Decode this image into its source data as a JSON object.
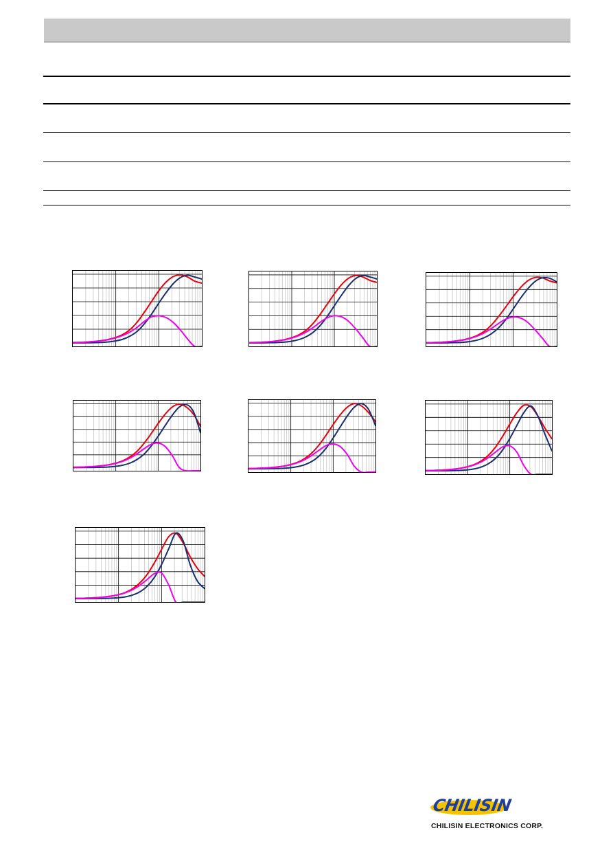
{
  "colors": {
    "header_bar": "#c9c9c9",
    "series_z": "#e8000b",
    "series_r": "#1a2e6e",
    "series_x": "#ee00ee"
  },
  "logo": {
    "brand": "CHILISIN",
    "caption": "CHILISIN ELECTRONICS CORP."
  },
  "chart_data": [
    {
      "type": "line",
      "x_scale": "log",
      "grid": true,
      "x": [
        1,
        1.5,
        2.2,
        3.2,
        4.6,
        6.8,
        10,
        14.7,
        21.5,
        31.6,
        46.4,
        68.1,
        100,
        147,
        215,
        316,
        464,
        681,
        1000
      ],
      "series": [
        {
          "color": "#e8000b",
          "values": [
            0.6,
            0.9,
            1.4,
            2.2,
            3.4,
            5.2,
            8.0,
            12.5,
            19.5,
            30.5,
            45.0,
            60.5,
            76.0,
            88.5,
            96.5,
            99.0,
            96.0,
            90.0,
            87.0
          ]
        },
        {
          "color": "#1a2e6e",
          "values": [
            0.0,
            0.1,
            0.2,
            0.4,
            0.8,
            1.5,
            3.0,
            5.5,
            10.0,
            17.0,
            28.0,
            42.0,
            58.0,
            73.0,
            86.0,
            95.0,
            98.5,
            96.0,
            93.0
          ]
        },
        {
          "color": "#ee00ee",
          "values": [
            0.6,
            0.9,
            1.4,
            2.1,
            3.2,
            4.9,
            7.4,
            11.0,
            16.0,
            23.0,
            31.5,
            38.0,
            39.5,
            37.0,
            30.0,
            19.0,
            6.0,
            -6.0,
            -12.0
          ]
        }
      ]
    },
    {
      "type": "line",
      "x_scale": "log",
      "grid": true,
      "x": [
        1,
        1.5,
        2.2,
        3.2,
        4.6,
        6.8,
        10,
        14.7,
        21.5,
        31.6,
        46.4,
        68.1,
        100,
        147,
        215,
        316,
        464,
        681,
        1000
      ],
      "series": [
        {
          "color": "#e8000b",
          "values": [
            0.5,
            0.8,
            1.3,
            2.0,
            3.2,
            5.0,
            7.8,
            12.0,
            18.5,
            28.5,
            42.0,
            57.0,
            72.0,
            85.5,
            95.0,
            99.0,
            97.0,
            92.0,
            89.0
          ]
        },
        {
          "color": "#1a2e6e",
          "values": [
            0.0,
            0.1,
            0.2,
            0.4,
            0.7,
            1.3,
            2.6,
            5.0,
            9.0,
            15.5,
            25.5,
            39.0,
            54.5,
            70.0,
            84.0,
            94.5,
            99.0,
            97.0,
            94.0
          ]
        },
        {
          "color": "#ee00ee",
          "values": [
            0.5,
            0.8,
            1.3,
            1.9,
            3.0,
            4.7,
            7.2,
            10.8,
            15.8,
            22.5,
            30.5,
            37.0,
            40.0,
            38.5,
            32.0,
            21.0,
            8.0,
            -5.0,
            -12.0
          ]
        }
      ]
    },
    {
      "type": "line",
      "x_scale": "log",
      "grid": true,
      "x": [
        1,
        1.5,
        2.2,
        3.2,
        4.6,
        6.8,
        10,
        14.7,
        21.5,
        31.6,
        46.4,
        68.1,
        100,
        147,
        215,
        316,
        464,
        681,
        1000
      ],
      "series": [
        {
          "color": "#e8000b",
          "values": [
            0.5,
            0.8,
            1.2,
            1.9,
            3.0,
            4.7,
            7.3,
            11.3,
            17.5,
            27.0,
            40.0,
            54.5,
            69.5,
            83.0,
            93.0,
            98.0,
            97.5,
            93.0,
            90.0
          ]
        },
        {
          "color": "#1a2e6e",
          "values": [
            0.0,
            0.1,
            0.2,
            0.3,
            0.6,
            1.1,
            2.2,
            4.3,
            8.0,
            14.0,
            23.0,
            35.5,
            51.0,
            67.0,
            81.0,
            92.0,
            97.5,
            97.0,
            91.5
          ]
        },
        {
          "color": "#ee00ee",
          "values": [
            0.5,
            0.8,
            1.2,
            1.8,
            2.8,
            4.4,
            6.8,
            10.3,
            15.2,
            21.8,
            29.5,
            36.0,
            39.0,
            37.5,
            31.0,
            20.0,
            7.5,
            -5.0,
            -12.0
          ]
        }
      ]
    },
    {
      "type": "line",
      "x_scale": "log",
      "grid": true,
      "x": [
        1,
        1.5,
        2.2,
        3.2,
        4.6,
        6.8,
        10,
        14.7,
        21.5,
        31.6,
        46.4,
        68.1,
        100,
        147,
        215,
        316,
        464,
        681,
        1000
      ],
      "series": [
        {
          "color": "#e8000b",
          "values": [
            0.5,
            0.8,
            1.2,
            1.9,
            2.9,
            4.5,
            7.0,
            10.8,
            16.7,
            25.5,
            38.0,
            53.0,
            69.0,
            84.0,
            95.0,
            99.5,
            95.0,
            84.0,
            65.0
          ]
        },
        {
          "color": "#1a2e6e",
          "values": [
            0.0,
            0.1,
            0.1,
            0.3,
            0.5,
            1.0,
            2.0,
            3.8,
            7.0,
            12.5,
            21.0,
            33.5,
            49.0,
            66.0,
            82.0,
            95.0,
            99.0,
            88.0,
            55.0
          ]
        },
        {
          "color": "#ee00ee",
          "values": [
            0.5,
            0.8,
            1.2,
            1.8,
            2.8,
            4.3,
            6.6,
            10.0,
            14.8,
            21.5,
            29.5,
            36.5,
            38.5,
            33.0,
            19.0,
            0.0,
            -14.0,
            -25.0,
            -30.0
          ]
        }
      ]
    },
    {
      "type": "line",
      "x_scale": "log",
      "grid": true,
      "x": [
        1,
        1.5,
        2.2,
        3.2,
        4.6,
        6.8,
        10,
        14.7,
        21.5,
        31.6,
        46.4,
        68.1,
        100,
        147,
        215,
        316,
        464,
        681,
        1000
      ],
      "series": [
        {
          "color": "#e8000b",
          "values": [
            0.5,
            0.8,
            1.2,
            1.8,
            2.8,
            4.3,
            6.7,
            10.3,
            16.0,
            24.5,
            36.5,
            51.5,
            67.5,
            82.5,
            94.0,
            99.5,
            96.0,
            86.0,
            72.0
          ]
        },
        {
          "color": "#1a2e6e",
          "values": [
            0.0,
            0.1,
            0.1,
            0.3,
            0.5,
            0.9,
            1.8,
            3.5,
            6.5,
            11.5,
            19.5,
            31.5,
            47.0,
            64.0,
            80.5,
            94.0,
            99.5,
            91.0,
            66.0
          ]
        },
        {
          "color": "#ee00ee",
          "values": [
            0.5,
            0.8,
            1.2,
            1.7,
            2.7,
            4.1,
            6.3,
            9.6,
            14.2,
            20.8,
            28.5,
            35.5,
            38.0,
            34.0,
            22.0,
            4.0,
            -11.0,
            -23.0,
            -30.0
          ]
        }
      ]
    },
    {
      "type": "line",
      "x_scale": "log",
      "grid": true,
      "x": [
        1,
        1.5,
        2.2,
        3.2,
        4.6,
        6.8,
        10,
        14.7,
        21.5,
        31.6,
        46.4,
        68.1,
        100,
        147,
        215,
        316,
        464,
        681,
        1000
      ],
      "series": [
        {
          "color": "#e8000b",
          "values": [
            0.4,
            0.7,
            1.1,
            1.7,
            2.6,
            4.0,
            6.3,
            9.8,
            15.3,
            23.8,
            36.0,
            52.0,
            70.0,
            87.0,
            98.0,
            96.0,
            82.0,
            64.0,
            48.0
          ]
        },
        {
          "color": "#1a2e6e",
          "values": [
            0.0,
            0.0,
            0.1,
            0.2,
            0.4,
            0.8,
            1.6,
            3.1,
            6.0,
            11.0,
            19.0,
            31.5,
            48.5,
            68.0,
            87.0,
            97.0,
            82.0,
            55.0,
            30.0
          ]
        },
        {
          "color": "#ee00ee",
          "values": [
            0.4,
            0.7,
            1.1,
            1.6,
            2.5,
            3.9,
            6.0,
            9.2,
            13.8,
            20.3,
            28.5,
            36.0,
            37.5,
            28.0,
            8.0,
            -12.0,
            -26.0,
            -33.0,
            -36.0
          ]
        }
      ]
    },
    {
      "type": "line",
      "x_scale": "log",
      "grid": true,
      "x": [
        1,
        1.5,
        2.2,
        3.2,
        4.6,
        6.8,
        10,
        14.7,
        21.5,
        31.6,
        46.4,
        68.1,
        100,
        147,
        215,
        316,
        464,
        681,
        1000
      ],
      "series": [
        {
          "color": "#e8000b",
          "values": [
            0.4,
            0.6,
            1.0,
            1.6,
            2.5,
            3.9,
            6.0,
            9.5,
            15.0,
            23.5,
            36.0,
            53.0,
            73.0,
            92.0,
            97.0,
            83.0,
            62.0,
            45.0,
            33.0
          ]
        },
        {
          "color": "#1a2e6e",
          "values": [
            0.0,
            0.0,
            0.1,
            0.2,
            0.3,
            0.7,
            1.4,
            2.8,
            5.5,
            10.3,
            18.5,
            31.5,
            50.5,
            74.0,
            97.0,
            86.0,
            50.0,
            26.0,
            15.0
          ]
        },
        {
          "color": "#ee00ee",
          "values": [
            0.4,
            0.6,
            1.0,
            1.5,
            2.4,
            3.8,
            5.8,
            9.0,
            13.5,
            20.0,
            28.5,
            37.0,
            38.0,
            20.0,
            -8.0,
            -27.0,
            -36.0,
            -40.0,
            -42.0
          ]
        }
      ]
    }
  ]
}
